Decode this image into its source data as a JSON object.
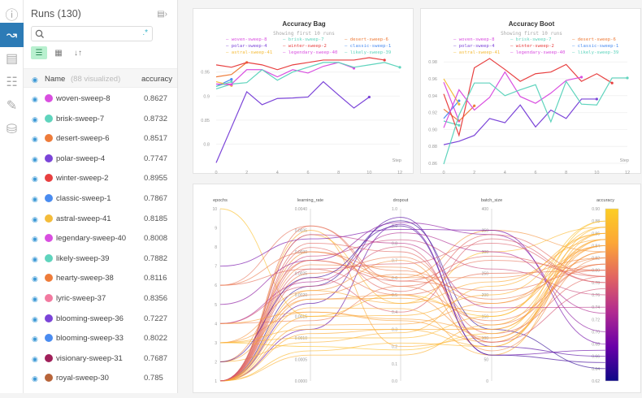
{
  "sidebar": {
    "icons": [
      "info-icon",
      "chart-icon",
      "table-icon",
      "clipboard-icon",
      "brush-icon",
      "database-icon"
    ],
    "active": 1
  },
  "runs": {
    "title": "Runs (130)",
    "search_placeholder": "",
    "header": {
      "name": "Name",
      "visualized": "(88 visualized)",
      "metric": "accuracy"
    },
    "items": [
      {
        "name": "woven-sweep-8",
        "accuracy": "0.8627",
        "color": "#d94fe0"
      },
      {
        "name": "brisk-sweep-7",
        "accuracy": "0.8732",
        "color": "#5fd4bd"
      },
      {
        "name": "desert-sweep-6",
        "accuracy": "0.8517",
        "color": "#ee7c3a"
      },
      {
        "name": "polar-sweep-4",
        "accuracy": "0.7747",
        "color": "#7b44d8"
      },
      {
        "name": "winter-sweep-2",
        "accuracy": "0.8955",
        "color": "#e84040"
      },
      {
        "name": "classic-sweep-1",
        "accuracy": "0.7867",
        "color": "#4a8cf0"
      },
      {
        "name": "astral-sweep-41",
        "accuracy": "0.8185",
        "color": "#f4bc3a"
      },
      {
        "name": "legendary-sweep-40",
        "accuracy": "0.8008",
        "color": "#d94fe0"
      },
      {
        "name": "likely-sweep-39",
        "accuracy": "0.7882",
        "color": "#5fd4bd"
      },
      {
        "name": "hearty-sweep-38",
        "accuracy": "0.8116",
        "color": "#ee7c3a"
      },
      {
        "name": "lyric-sweep-37",
        "accuracy": "0.8356",
        "color": "#f27aa0"
      },
      {
        "name": "blooming-sweep-36",
        "accuracy": "0.7227",
        "color": "#7b44d8"
      },
      {
        "name": "blooming-sweep-33",
        "accuracy": "0.8022",
        "color": "#4a8cf0"
      },
      {
        "name": "visionary-sweep-31",
        "accuracy": "0.7687",
        "color": "#a0205a"
      },
      {
        "name": "royal-sweep-30",
        "accuracy": "0.785",
        "color": "#b8653a"
      }
    ]
  },
  "chart_data": [
    {
      "type": "line",
      "title": "Accuracy Bag",
      "subtitle": "Showing first 10 runs",
      "xlabel": "Step",
      "xlim": [
        0,
        12
      ],
      "ylim": [
        0.76,
        0.98
      ],
      "xticks": [
        0,
        2,
        4,
        6,
        8,
        10,
        12
      ],
      "yticks": [
        0.8,
        0.85,
        0.9,
        0.95
      ],
      "series": [
        {
          "name": "woven-sweep-8",
          "color": "#d94fe0",
          "values": [
            0.925,
            0.925,
            0.955,
            0.955,
            0.94,
            0.955,
            0.948,
            0.962,
            0.97,
            0.958
          ]
        },
        {
          "name": "brisk-sweep-7",
          "color": "#5fd4bd",
          "values": [
            0.915,
            0.925,
            0.928,
            0.955,
            0.933,
            0.95,
            0.96,
            0.97,
            0.97,
            0.96,
            0.965,
            0.97,
            0.96
          ]
        },
        {
          "name": "desert-sweep-6",
          "color": "#ee7c3a",
          "values": [
            0.94,
            0.945,
            0.97
          ]
        },
        {
          "name": "polar-sweep-4",
          "color": "#7b44d8",
          "values": [
            0.761,
            0.835,
            0.909,
            0.882,
            0.895,
            0.896,
            0.898,
            0.93,
            0.902,
            0.875,
            0.898
          ]
        },
        {
          "name": "winter-sweep-2",
          "color": "#e84040",
          "values": [
            0.965,
            0.96,
            0.97,
            0.965,
            0.955,
            0.965,
            0.97,
            0.975,
            0.975,
            0.975,
            0.98,
            0.975
          ]
        },
        {
          "name": "classic-sweep-1",
          "color": "#4a8cf0",
          "values": [
            0.92,
            0.935
          ]
        },
        {
          "name": "astral-sweep-41",
          "color": "#f4bc3a",
          "values": [
            0.93,
            0.922
          ]
        },
        {
          "name": "legendary-sweep-40",
          "color": "#d94fe0",
          "values": [
            0.925,
            0.924
          ]
        },
        {
          "name": "likely-sweep-39",
          "color": "#5fd4bd",
          "values": [
            0.92,
            0.93
          ]
        }
      ]
    },
    {
      "type": "line",
      "title": "Accuracy Boot",
      "subtitle": "Showing first 10 runs",
      "xlabel": "Step",
      "xlim": [
        0,
        12
      ],
      "ylim": [
        0.86,
        0.985
      ],
      "xticks": [
        0,
        2,
        4,
        6,
        8,
        10,
        12
      ],
      "yticks": [
        0.86,
        0.88,
        0.9,
        0.92,
        0.94,
        0.96,
        0.98
      ],
      "series": [
        {
          "name": "woven-sweep-8",
          "color": "#d94fe0",
          "values": [
            0.956,
            0.91
          ]
        },
        {
          "name": "brisk-sweep-7",
          "color": "#5fd4bd",
          "values": [
            0.91,
            0.905
          ]
        },
        {
          "name": "desert-sweep-6",
          "color": "#ee7c3a",
          "values": [
            0.924,
            0.91,
            0.928
          ]
        },
        {
          "name": "polar-sweep-4",
          "color": "#7b44d8",
          "values": [
            0.882,
            0.886,
            0.893,
            0.913,
            0.908,
            0.929,
            0.903,
            0.923,
            0.913,
            0.936,
            0.936
          ]
        },
        {
          "name": "winter-sweep-2",
          "color": "#e84040",
          "values": [
            0.942,
            0.893,
            0.973,
            0.984,
            0.971,
            0.957,
            0.966,
            0.968,
            0.977,
            0.957,
            0.966,
            0.955
          ]
        },
        {
          "name": "classic-sweep-1",
          "color": "#4a8cf0",
          "values": [
            0.913,
            0.934
          ]
        },
        {
          "name": "astral-sweep-41",
          "color": "#f4bc3a",
          "values": [
            0.96,
            0.93
          ]
        },
        {
          "name": "legendary-sweep-40",
          "color": "#d94fe0",
          "values": [
            0.902,
            0.947,
            0.923,
            0.938,
            0.968,
            0.939,
            0.931,
            0.943,
            0.958,
            0.962
          ]
        },
        {
          "name": "likely-sweep-39",
          "color": "#5fd4bd",
          "values": [
            0.859,
            0.917,
            0.955,
            0.955,
            0.94,
            0.947,
            0.953,
            0.909,
            0.957,
            0.93,
            0.929,
            0.961,
            0.961
          ]
        }
      ]
    },
    {
      "type": "parallel_coordinates",
      "axes": [
        {
          "name": "epochs",
          "range": [
            1,
            10
          ],
          "ticks": [
            "10",
            "9",
            "8",
            "7",
            "6",
            "5",
            "4",
            "3",
            "2",
            "1"
          ]
        },
        {
          "name": "learning_rate",
          "range": [
            0,
            0.004
          ],
          "ticks": [
            "0.0040",
            "0.0035",
            "0.0030",
            "0.0025",
            "0.0020",
            "0.0015",
            "0.0010",
            "0.0005",
            "0.0000"
          ]
        },
        {
          "name": "dropout",
          "range": [
            0,
            1
          ],
          "ticks": [
            "1.0",
            "0.9",
            "0.8",
            "0.7",
            "0.6",
            "0.5",
            "0.4",
            "0.3",
            "0.2",
            "0.1",
            "0.0"
          ]
        },
        {
          "name": "batch_size",
          "range": [
            0,
            400
          ],
          "ticks": [
            "400",
            "350",
            "300",
            "250",
            "200",
            "150",
            "100",
            "50",
            "0"
          ]
        },
        {
          "name": "accuracy",
          "range": [
            0.62,
            0.9
          ],
          "ticks": [
            "0.90",
            "0.88",
            "0.86",
            "0.84",
            "0.82",
            "0.80",
            "0.78",
            "0.76",
            "0.74",
            "0.72",
            "0.70",
            "0.68",
            "0.66",
            "0.64",
            "0.62"
          ]
        }
      ],
      "colorscale": [
        "#0d0887",
        "#6a00a8",
        "#b12a90",
        "#e16462",
        "#fca636",
        "#fcce25"
      ],
      "runs": [
        [
          10,
          0.0015,
          0.5,
          150,
          0.88
        ],
        [
          1,
          0.0035,
          0.2,
          100,
          0.85
        ],
        [
          1,
          0.003,
          0.6,
          350,
          0.83
        ],
        [
          1,
          0.0022,
          0.93,
          120,
          0.64
        ],
        [
          1,
          0.0018,
          0.95,
          80,
          0.66
        ],
        [
          5,
          0.0028,
          0.92,
          340,
          0.7
        ],
        [
          1,
          0.0012,
          0.91,
          60,
          0.67
        ],
        [
          6,
          0.0026,
          0.5,
          250,
          0.8
        ],
        [
          1,
          0.0034,
          0.45,
          300,
          0.87
        ],
        [
          3,
          0.0016,
          0.35,
          90,
          0.84
        ],
        [
          1,
          0.002,
          0.62,
          180,
          0.82
        ],
        [
          2,
          0.0009,
          0.28,
          220,
          0.86
        ],
        [
          1,
          0.0032,
          0.75,
          110,
          0.79
        ],
        [
          4,
          0.0014,
          0.55,
          140,
          0.81
        ],
        [
          1,
          0.0024,
          0.4,
          330,
          0.78
        ],
        [
          1,
          0.0011,
          0.3,
          120,
          0.85
        ],
        [
          3,
          0.0021,
          0.7,
          90,
          0.83
        ],
        [
          1,
          0.0029,
          0.82,
          260,
          0.76
        ],
        [
          6,
          0.0036,
          0.58,
          210,
          0.8
        ],
        [
          1,
          0.0007,
          0.22,
          80,
          0.87
        ],
        [
          2,
          0.0019,
          0.48,
          160,
          0.84
        ],
        [
          1,
          0.0027,
          0.66,
          70,
          0.82
        ],
        [
          4,
          0.0023,
          0.86,
          300,
          0.73
        ],
        [
          1,
          0.0015,
          0.38,
          200,
          0.86
        ],
        [
          1,
          0.0031,
          0.52,
          340,
          0.79
        ],
        [
          3,
          0.0008,
          0.18,
          110,
          0.88
        ],
        [
          1,
          0.0025,
          0.72,
          130,
          0.81
        ],
        [
          7,
          0.0033,
          0.88,
          350,
          0.68
        ],
        [
          1,
          0.0017,
          0.42,
          60,
          0.85
        ],
        [
          2,
          0.0028,
          0.6,
          240,
          0.82
        ],
        [
          1,
          0.0013,
          0.33,
          180,
          0.84
        ],
        [
          4,
          0.0022,
          0.78,
          90,
          0.77
        ],
        [
          1,
          0.0036,
          0.55,
          280,
          0.8
        ],
        [
          3,
          0.001,
          0.25,
          150,
          0.87
        ],
        [
          1,
          0.0026,
          0.68,
          320,
          0.78
        ],
        [
          1,
          0.0019,
          0.5,
          100,
          0.83
        ],
        [
          6,
          0.003,
          0.64,
          190,
          0.81
        ],
        [
          1,
          0.0006,
          0.15,
          130,
          0.86
        ],
        [
          2,
          0.0024,
          0.9,
          60,
          0.65
        ],
        [
          1,
          0.0021,
          0.45,
          230,
          0.85
        ],
        [
          1,
          0.0034,
          0.8,
          170,
          0.74
        ],
        [
          4,
          0.0016,
          0.36,
          120,
          0.84
        ],
        [
          1,
          0.0028,
          0.58,
          290,
          0.79
        ],
        [
          3,
          0.0012,
          0.3,
          80,
          0.86
        ]
      ]
    }
  ]
}
